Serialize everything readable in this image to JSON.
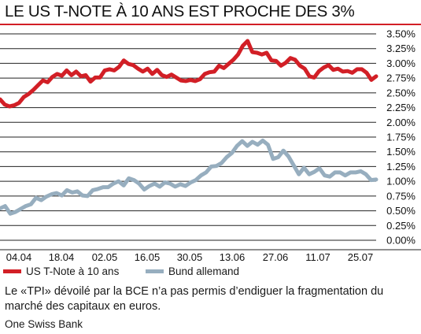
{
  "title": "LE US T-NOTE À 10 ANS EST PROCHE DES 3%",
  "colors": {
    "us": "#d21f26",
    "bund": "#97aebf",
    "grid": "#222222",
    "accent": "#d21f26"
  },
  "chart_data": {
    "type": "line",
    "title": "LE US T-NOTE À 10 ANS EST PROCHE DES 3%",
    "xlabel": "",
    "ylabel": "",
    "x_tick_labels": [
      "04.04",
      "18.04",
      "02.05",
      "16.05",
      "30.05",
      "13.06",
      "27.06",
      "11.07",
      "25.07"
    ],
    "y_tick_labels": [
      "3.50%",
      "3.25%",
      "3.00%",
      "2.75%",
      "2.50%",
      "2.25%",
      "2.00%",
      "1.75%",
      "1.50%",
      "1.25%",
      "1.00%",
      "0.75%",
      "0.50%",
      "0.25%",
      "0.00%"
    ],
    "ylim": [
      0,
      3.5
    ],
    "x_index_range": [
      0,
      84
    ],
    "grid": true,
    "legend_position": "bottom",
    "series": [
      {
        "name": "US T-Note à 10 ans",
        "color": "#d21f26",
        "values": [
          2.39,
          2.3,
          2.27,
          2.29,
          2.33,
          2.43,
          2.48,
          2.55,
          2.63,
          2.71,
          2.68,
          2.77,
          2.82,
          2.79,
          2.88,
          2.8,
          2.86,
          2.78,
          2.8,
          2.69,
          2.76,
          2.76,
          2.88,
          2.9,
          2.88,
          2.94,
          3.05,
          2.99,
          2.97,
          2.91,
          2.86,
          2.91,
          2.82,
          2.89,
          2.8,
          2.77,
          2.81,
          2.76,
          2.71,
          2.7,
          2.72,
          2.7,
          2.73,
          2.82,
          2.85,
          2.86,
          2.96,
          2.92,
          2.99,
          3.06,
          3.15,
          3.3,
          3.38,
          3.19,
          3.18,
          3.15,
          3.18,
          3.05,
          3.04,
          2.96,
          3.01,
          3.09,
          3.06,
          2.96,
          2.91,
          2.78,
          2.76,
          2.87,
          2.93,
          2.97,
          2.89,
          2.91,
          2.86,
          2.87,
          2.84,
          2.9,
          2.9,
          2.84,
          2.72,
          2.78
        ]
      },
      {
        "name": "Bund allemand",
        "color": "#97aebf",
        "values": [
          0.54,
          0.58,
          0.45,
          0.48,
          0.53,
          0.58,
          0.61,
          0.72,
          0.68,
          0.74,
          0.78,
          0.8,
          0.76,
          0.85,
          0.81,
          0.83,
          0.76,
          0.75,
          0.85,
          0.87,
          0.9,
          0.9,
          0.96,
          1.0,
          0.93,
          1.05,
          1.02,
          0.96,
          0.86,
          0.92,
          0.96,
          0.91,
          0.98,
          0.96,
          0.91,
          0.95,
          0.92,
          0.98,
          1.02,
          1.1,
          1.15,
          1.25,
          1.26,
          1.31,
          1.41,
          1.48,
          1.6,
          1.68,
          1.6,
          1.67,
          1.62,
          1.69,
          1.62,
          1.38,
          1.41,
          1.52,
          1.42,
          1.27,
          1.12,
          1.23,
          1.12,
          1.16,
          1.22,
          1.1,
          1.08,
          1.15,
          1.15,
          1.1,
          1.15,
          1.15,
          1.17,
          1.12,
          1.02,
          1.03
        ]
      }
    ]
  },
  "legend": [
    {
      "label": "US T-Note à 10 ans"
    },
    {
      "label": "Bund allemand"
    }
  ],
  "caption": "Le «TPI» dévoilé par la BCE n’a pas permis d’endiguer la fragmentation du marché des capitaux en euros.",
  "source": "One Swiss Bank"
}
